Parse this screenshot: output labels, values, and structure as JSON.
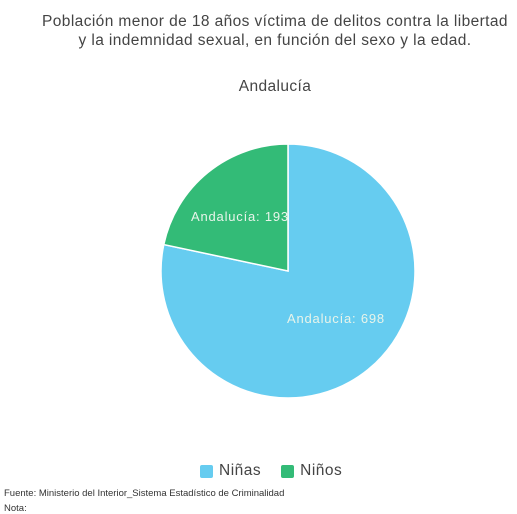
{
  "chart_data": {
    "type": "pie",
    "title": "Población menor de 18 años víctima de delitos contra la libertad y la indemnidad sexual, en función del sexo y la edad.",
    "subtitle": "Andalucía",
    "categories": [
      "Niñas",
      "Niños"
    ],
    "values": [
      698,
      193
    ],
    "data_labels": [
      "Andalucía: 698",
      "Andalucía: 193"
    ],
    "colors": [
      "#66ccf0",
      "#33bb77"
    ],
    "legend_position": "bottom-center"
  },
  "legend": {
    "items": [
      {
        "label": "Niñas",
        "color": "#66ccf0"
      },
      {
        "label": "Niños",
        "color": "#33bb77"
      }
    ]
  },
  "footer": {
    "source": "Fuente: Ministerio del Interior_Sistema Estadístico de Criminalidad",
    "note": "Nota:"
  }
}
